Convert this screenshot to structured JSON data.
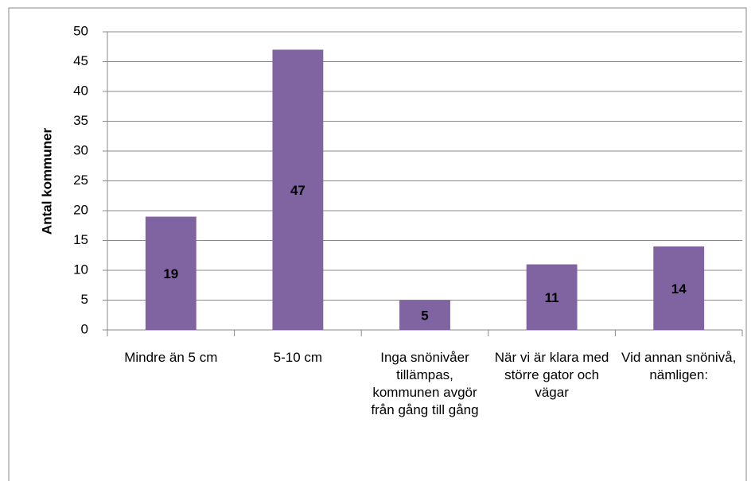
{
  "chart_data": {
    "type": "bar",
    "y_label": "Antal kommuner",
    "categories": [
      "Mindre än 5 cm",
      "5-10 cm",
      "Inga snönivåer tillämpas, kommunen avgör från gång till gång",
      "När vi är klara med större gator och vägar",
      "Vid annan snönivå, nämligen:"
    ],
    "values": [
      19,
      47,
      5,
      11,
      14
    ],
    "color": "#8064a2",
    "ylim": [
      0,
      50
    ],
    "yticks": [
      0,
      5,
      10,
      15,
      20,
      25,
      30,
      35,
      40,
      45,
      50
    ],
    "grid": true
  }
}
